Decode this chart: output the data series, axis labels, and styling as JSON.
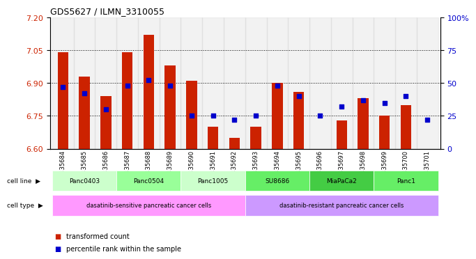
{
  "title": "GDS5627 / ILMN_3310055",
  "samples": [
    "GSM1435684",
    "GSM1435685",
    "GSM1435686",
    "GSM1435687",
    "GSM1435688",
    "GSM1435689",
    "GSM1435690",
    "GSM1435691",
    "GSM1435692",
    "GSM1435693",
    "GSM1435694",
    "GSM1435695",
    "GSM1435696",
    "GSM1435697",
    "GSM1435698",
    "GSM1435699",
    "GSM1435700",
    "GSM1435701"
  ],
  "red_values": [
    7.04,
    6.93,
    6.84,
    7.04,
    7.12,
    6.98,
    6.91,
    6.7,
    6.65,
    6.7,
    6.9,
    6.86,
    6.6,
    6.73,
    6.83,
    6.75,
    6.8,
    6.6
  ],
  "blue_values": [
    47,
    42,
    30,
    48,
    52,
    48,
    25,
    25,
    22,
    25,
    48,
    40,
    25,
    32,
    37,
    35,
    40,
    22
  ],
  "cell_lines": [
    {
      "name": "Panc0403",
      "start": 0,
      "end": 3,
      "color": "#ccffcc"
    },
    {
      "name": "Panc0504",
      "start": 3,
      "end": 6,
      "color": "#99ff99"
    },
    {
      "name": "Panc1005",
      "start": 6,
      "end": 9,
      "color": "#ccffcc"
    },
    {
      "name": "SU8686",
      "start": 9,
      "end": 12,
      "color": "#66ee66"
    },
    {
      "name": "MiaPaCa2",
      "start": 12,
      "end": 15,
      "color": "#44cc44"
    },
    {
      "name": "Panc1",
      "start": 15,
      "end": 18,
      "color": "#66ee66"
    }
  ],
  "cell_types": [
    {
      "name": "dasatinib-sensitive pancreatic cancer cells",
      "start": 0,
      "end": 9,
      "color": "#ff99ff"
    },
    {
      "name": "dasatinib-resistant pancreatic cancer cells",
      "start": 9,
      "end": 18,
      "color": "#cc99ff"
    }
  ],
  "ylim_left": [
    6.6,
    7.2
  ],
  "ylim_right": [
    0,
    100
  ],
  "yticks_left": [
    6.6,
    6.75,
    6.9,
    7.05,
    7.2
  ],
  "yticks_right": [
    0,
    25,
    50,
    75,
    100
  ],
  "bar_color": "#cc2200",
  "dot_color": "#0000cc",
  "grid_color": "black",
  "bar_bottom": 6.6,
  "legend_red": "transformed count",
  "legend_blue": "percentile rank within the sample"
}
